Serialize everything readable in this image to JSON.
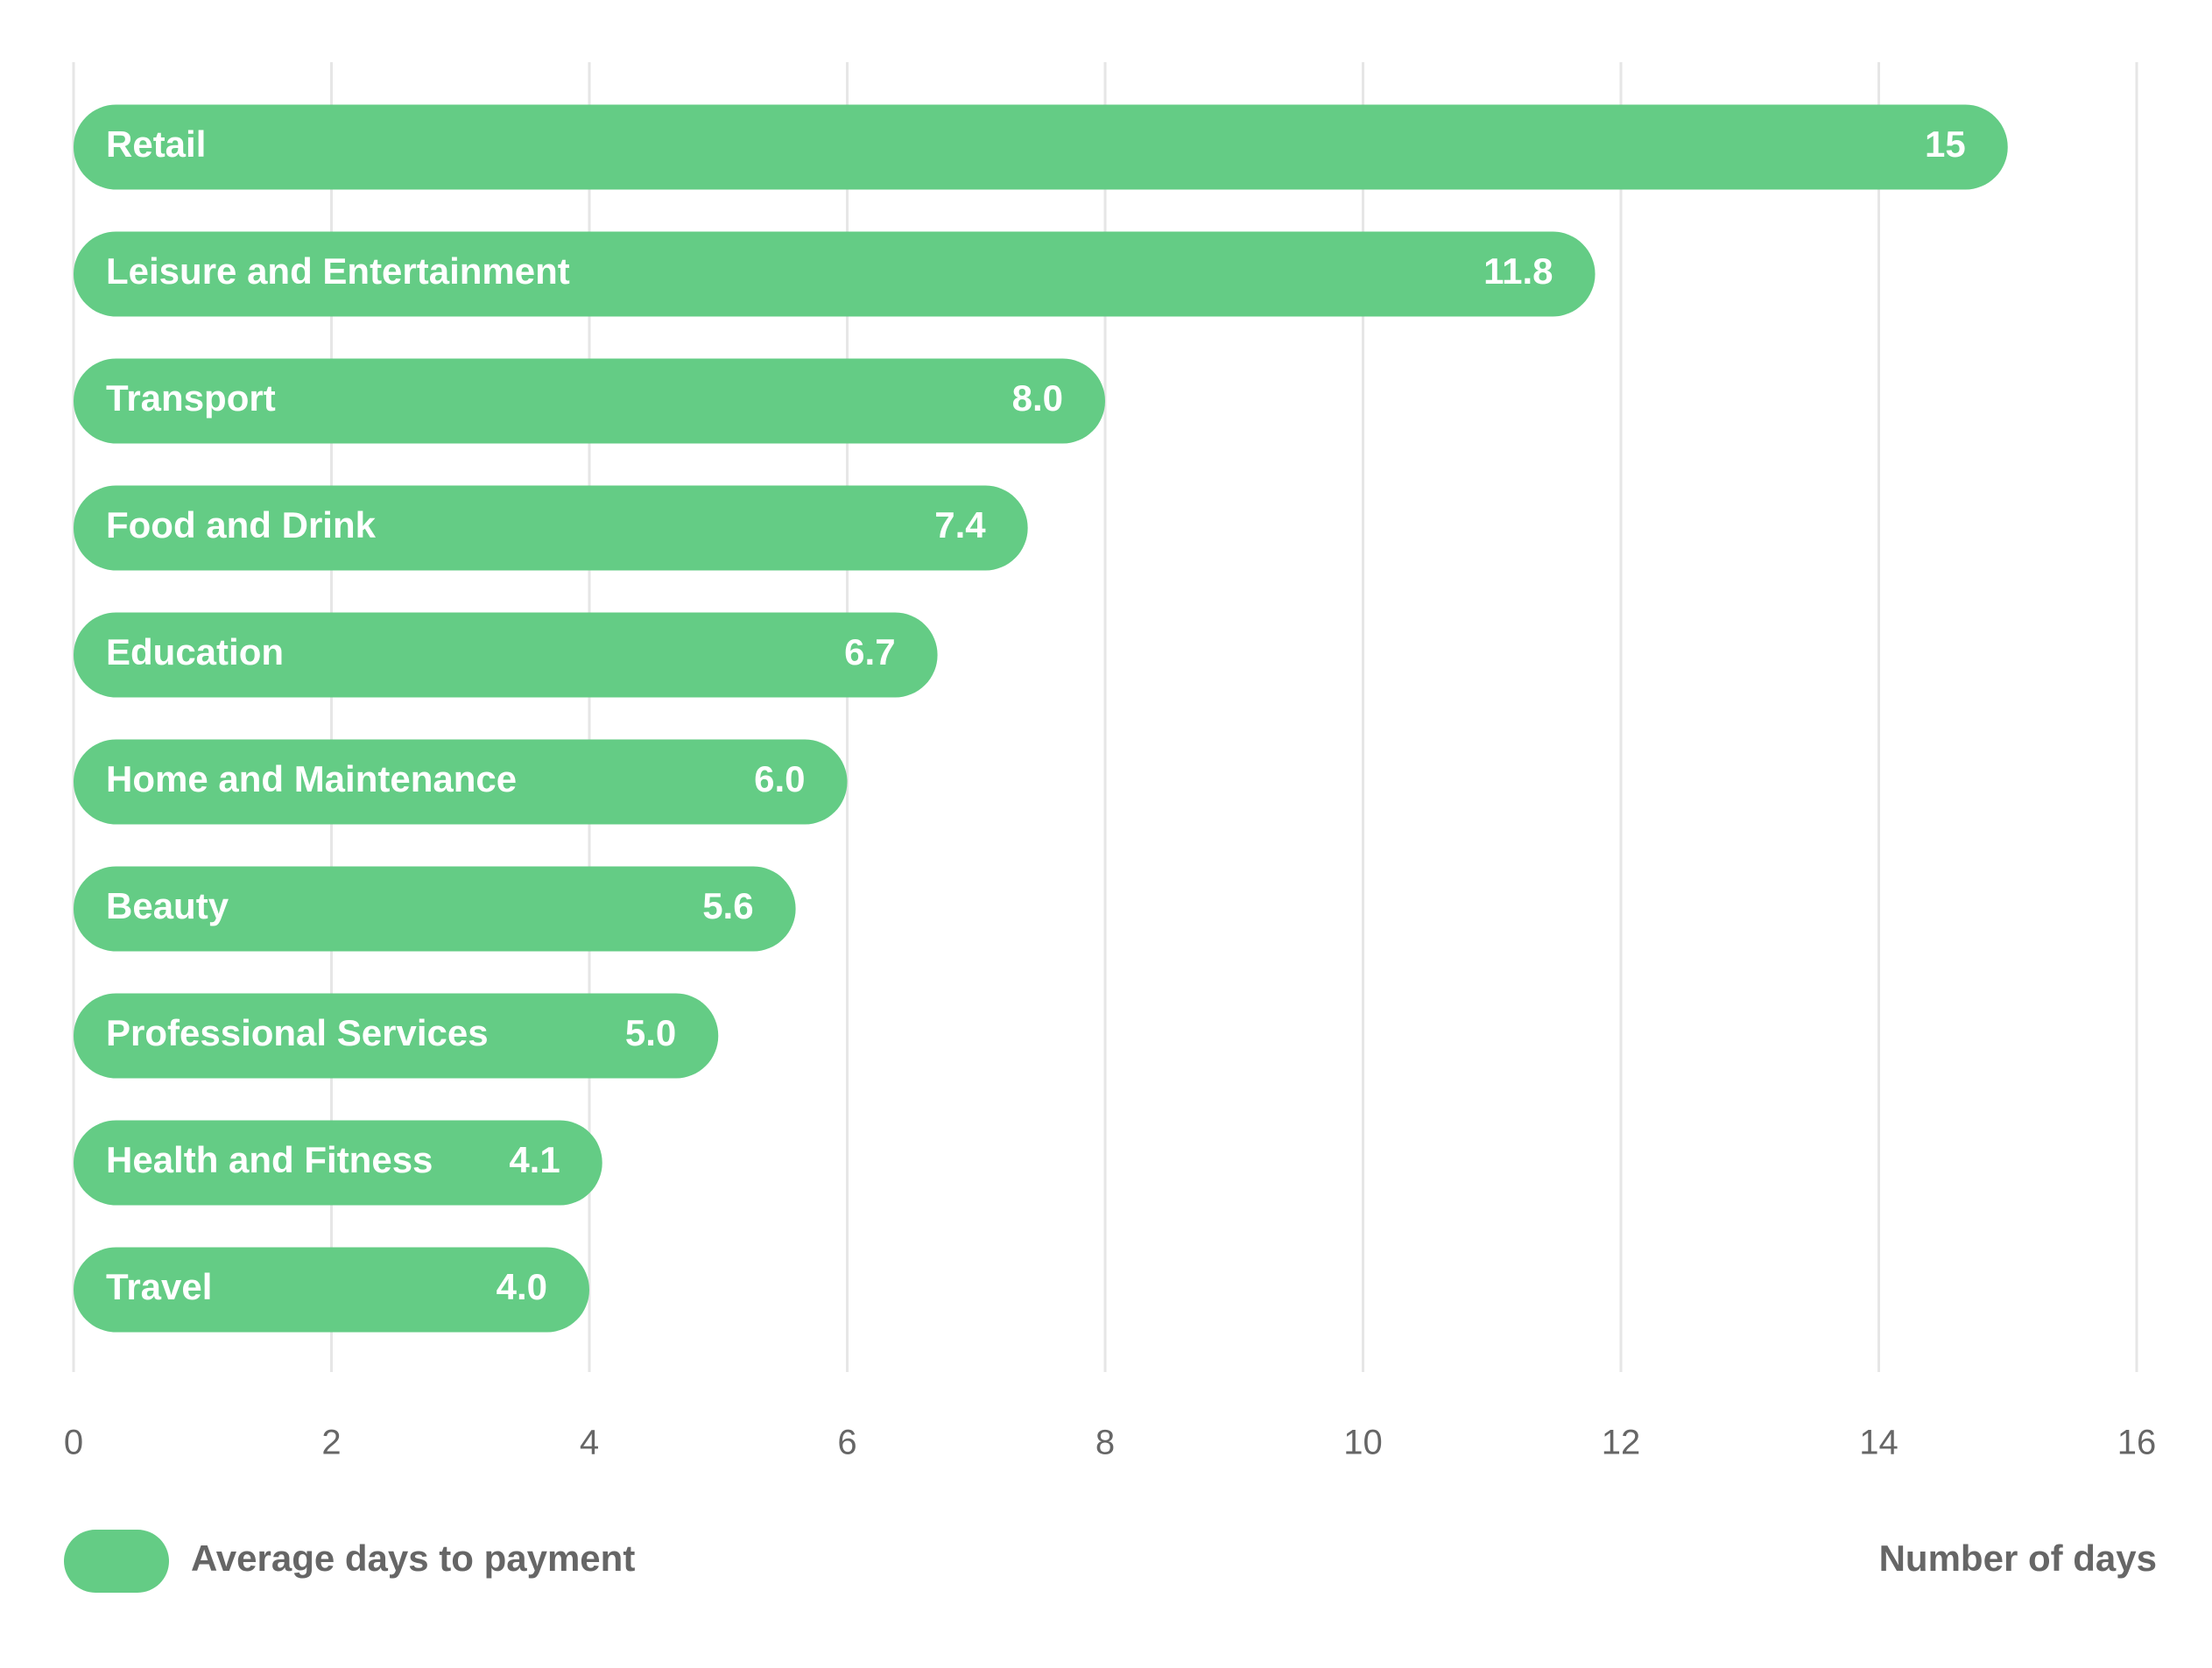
{
  "chart_data": {
    "type": "bar",
    "orientation": "horizontal",
    "categories": [
      "Retail",
      "Leisure and Entertainment",
      "Transport",
      "Food and Drink",
      "Education",
      "Home and Maintenance",
      "Beauty",
      "Professional Services",
      "Health and Fitness",
      "Travel"
    ],
    "series": [
      {
        "name": "Average days to payment",
        "color": "#64cc85",
        "values": [
          15,
          11.8,
          8,
          7.4,
          6.7,
          6,
          5.6,
          5,
          4.1,
          4
        ],
        "value_labels": [
          "15",
          "11.8",
          "8.0",
          "7.4",
          "6.7",
          "6.0",
          "5.6",
          "5.0",
          "4.1",
          "4.0"
        ]
      }
    ],
    "xlim": [
      0,
      16
    ],
    "xticks": [
      0,
      2,
      4,
      6,
      8,
      10,
      12,
      14,
      16
    ],
    "x_label": "Number of days",
    "grid": true,
    "legend": "bottom-left"
  }
}
